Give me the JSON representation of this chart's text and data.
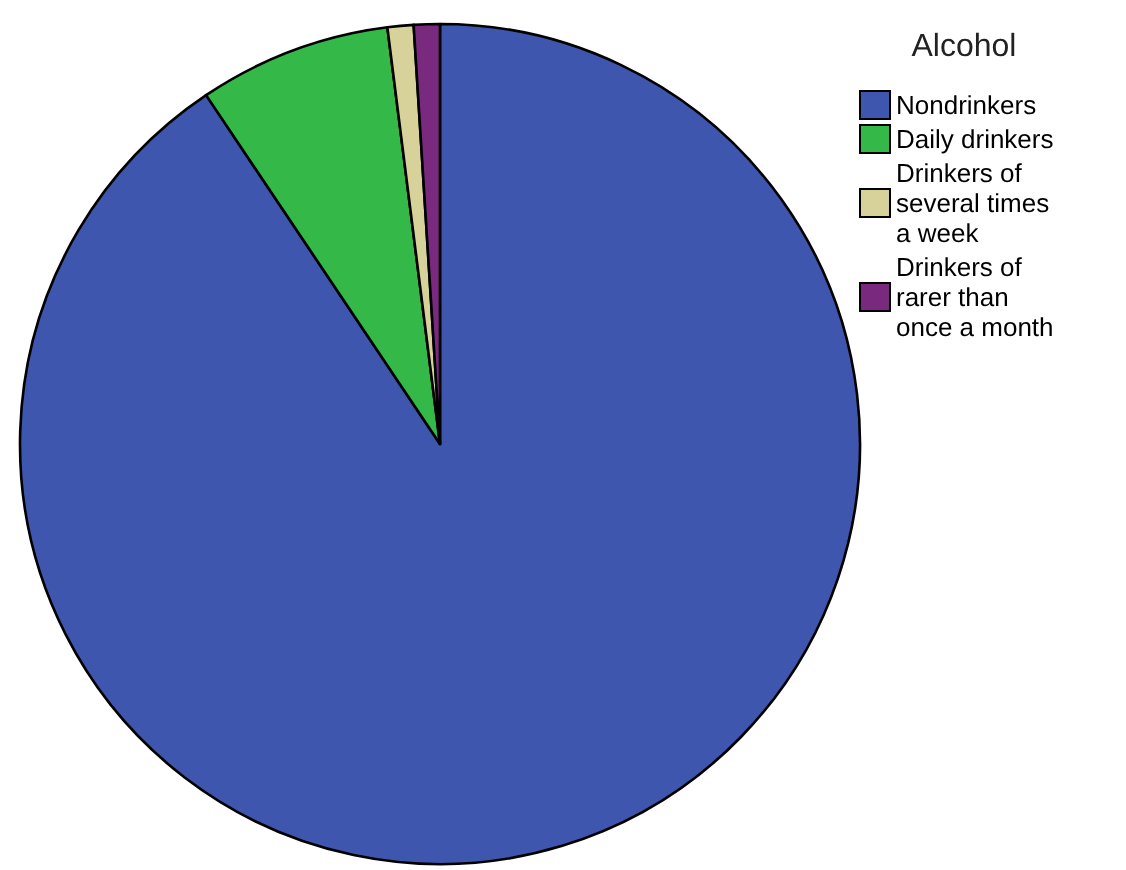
{
  "chart_data": {
    "type": "pie",
    "legend_title": "Alcohol",
    "legend": "right",
    "categories": [
      "Nondrinkers",
      "Daily drinkers",
      "Drinkers of several times a week",
      "Drinkers of rarer than once a month"
    ],
    "values": [
      90.6,
      7.4,
      1.0,
      1.0
    ],
    "colors": [
      "#3e56ad",
      "#34b948",
      "#d6d29a",
      "#7a2a7e"
    ]
  }
}
